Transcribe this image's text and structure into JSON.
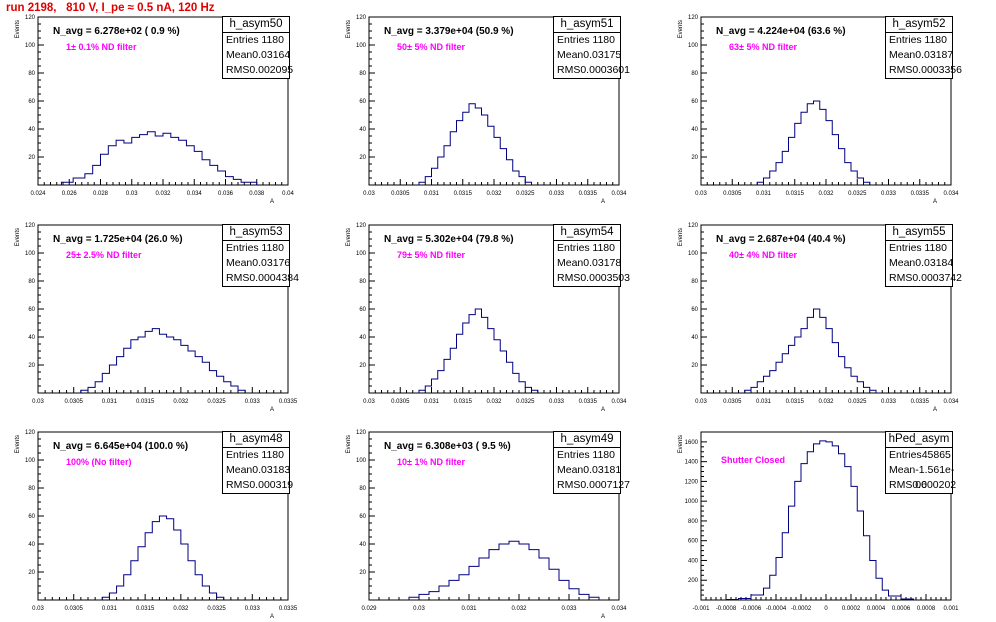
{
  "title": "run 2198,   810 V, I_pe ≈ 0.5 nA, 120 Hz",
  "stats_labels": {
    "entries": "Entries",
    "mean": "Mean",
    "rms": "RMS"
  },
  "colors": {
    "histogram": "#000080",
    "title": "#e00000",
    "annotation": "#ff00ff"
  },
  "chart_data": [
    {
      "type": "histogram",
      "name": "h_asym50",
      "n_avg": "N_avg = 6.278e+02 ( 0.9 %)",
      "filter": "1± 0.1% ND filter",
      "entries": "1180",
      "mean": "0.03164",
      "rms": "0.002095",
      "ylabel": "Events",
      "xlabel": "A",
      "xlim": [
        0.024,
        0.04
      ],
      "ylim": [
        0,
        120
      ],
      "xticks": [
        "0.024",
        "0.026",
        "0.028",
        "0.03",
        "0.032",
        "0.034",
        "0.036",
        "0.038",
        "0.04"
      ],
      "yticks": [
        "20",
        "40",
        "60",
        "80",
        "100",
        "120"
      ],
      "bin_edges": [
        0.0255,
        0.02625,
        0.027,
        0.0275,
        0.028,
        0.0285,
        0.029,
        0.0295,
        0.03,
        0.0305,
        0.031,
        0.0315,
        0.032,
        0.0325,
        0.033,
        0.0335,
        0.034,
        0.0345,
        0.035,
        0.0355,
        0.036,
        0.0365,
        0.037,
        0.038
      ],
      "counts": [
        2,
        5,
        8,
        14,
        22,
        28,
        32,
        30,
        34,
        36,
        38,
        35,
        37,
        34,
        32,
        28,
        24,
        18,
        14,
        10,
        6,
        4,
        2
      ]
    },
    {
      "type": "histogram",
      "name": "h_asym51",
      "n_avg": "N_avg = 3.379e+04 (50.9 %)",
      "filter": "50± 5% ND filter",
      "entries": "1180",
      "mean": "0.03175",
      "rms": "0.0003601",
      "ylabel": "Events",
      "xlabel": "A",
      "xlim": [
        0.03,
        0.034
      ],
      "ylim": [
        0,
        120
      ],
      "xticks": [
        "0.03",
        "0.0305",
        "0.031",
        "0.0315",
        "0.032",
        "0.0325",
        "0.033",
        "0.0335",
        "0.034"
      ],
      "yticks": [
        "20",
        "40",
        "60",
        "80",
        "100",
        "120"
      ],
      "bin_edges": [
        0.0308,
        0.0309,
        0.031,
        0.0311,
        0.0312,
        0.0313,
        0.0314,
        0.0315,
        0.0316,
        0.0317,
        0.0318,
        0.0319,
        0.032,
        0.0321,
        0.0322,
        0.0323,
        0.0324,
        0.0325,
        0.0326
      ],
      "counts": [
        2,
        6,
        12,
        20,
        28,
        38,
        46,
        52,
        58,
        55,
        50,
        42,
        34,
        26,
        18,
        10,
        6,
        2
      ]
    },
    {
      "type": "histogram",
      "name": "h_asym52",
      "n_avg": "N_avg = 4.224e+04 (63.6 %)",
      "filter": "63± 5% ND filter",
      "entries": "1180",
      "mean": "0.03187",
      "rms": "0.0003356",
      "ylabel": "Events",
      "xlabel": "A",
      "xlim": [
        0.03,
        0.034
      ],
      "ylim": [
        0,
        120
      ],
      "xticks": [
        "0.03",
        "0.0305",
        "0.031",
        "0.0315",
        "0.032",
        "0.0325",
        "0.033",
        "0.0335",
        "0.034"
      ],
      "yticks": [
        "20",
        "40",
        "60",
        "80",
        "100",
        "120"
      ],
      "bin_edges": [
        0.0309,
        0.031,
        0.0311,
        0.0312,
        0.0313,
        0.0314,
        0.0315,
        0.0316,
        0.0317,
        0.0318,
        0.0319,
        0.032,
        0.0321,
        0.0322,
        0.0323,
        0.0324,
        0.0325,
        0.0326,
        0.0327
      ],
      "counts": [
        2,
        5,
        10,
        16,
        24,
        34,
        44,
        52,
        58,
        60,
        54,
        46,
        36,
        26,
        16,
        10,
        5,
        2
      ]
    },
    {
      "type": "histogram",
      "name": "h_asym53",
      "n_avg": "N_avg = 1.725e+04 (26.0 %)",
      "filter": "25± 2.5% ND filter",
      "entries": "1180",
      "mean": "0.03176",
      "rms": "0.0004384",
      "ylabel": "Events",
      "xlabel": "A",
      "xlim": [
        0.03,
        0.0335
      ],
      "ylim": [
        0,
        120
      ],
      "xticks": [
        "0.03",
        "0.0305",
        "0.031",
        "0.0315",
        "0.032",
        "0.0325",
        "0.033",
        "0.0335"
      ],
      "yticks": [
        "20",
        "40",
        "60",
        "80",
        "100",
        "120"
      ],
      "bin_edges": [
        0.0306,
        0.0307,
        0.0308,
        0.0309,
        0.031,
        0.0311,
        0.0312,
        0.0313,
        0.0314,
        0.0315,
        0.0316,
        0.0317,
        0.0318,
        0.0319,
        0.032,
        0.0321,
        0.0322,
        0.0323,
        0.0324,
        0.0325,
        0.0326,
        0.0327,
        0.0328,
        0.0329
      ],
      "counts": [
        2,
        4,
        8,
        14,
        20,
        26,
        32,
        38,
        40,
        44,
        46,
        42,
        40,
        38,
        34,
        30,
        26,
        22,
        16,
        12,
        8,
        5,
        2
      ]
    },
    {
      "type": "histogram",
      "name": "h_asym54",
      "n_avg": "N_avg = 5.302e+04 (79.8 %)",
      "filter": "79± 5% ND filter",
      "entries": "1180",
      "mean": "0.03178",
      "rms": "0.0003503",
      "ylabel": "Events",
      "xlabel": "A",
      "xlim": [
        0.03,
        0.034
      ],
      "ylim": [
        0,
        120
      ],
      "xticks": [
        "0.03",
        "0.0305",
        "0.031",
        "0.0315",
        "0.032",
        "0.0325",
        "0.033",
        "0.0335",
        "0.034"
      ],
      "yticks": [
        "20",
        "40",
        "60",
        "80",
        "100",
        "120"
      ],
      "bin_edges": [
        0.0308,
        0.0309,
        0.031,
        0.0311,
        0.0312,
        0.0313,
        0.0314,
        0.0315,
        0.0316,
        0.0317,
        0.0318,
        0.0319,
        0.032,
        0.0321,
        0.0322,
        0.0323,
        0.0324,
        0.0325,
        0.0326,
        0.0327
      ],
      "counts": [
        2,
        5,
        10,
        16,
        24,
        32,
        42,
        50,
        56,
        60,
        54,
        46,
        38,
        30,
        22,
        14,
        8,
        4,
        2
      ]
    },
    {
      "type": "histogram",
      "name": "h_asym55",
      "n_avg": "N_avg = 2.687e+04 (40.4 %)",
      "filter": "40± 4% ND filter",
      "entries": "1180",
      "mean": "0.03184",
      "rms": "0.0003742",
      "ylabel": "Events",
      "xlabel": "A",
      "xlim": [
        0.03,
        0.034
      ],
      "ylim": [
        0,
        120
      ],
      "xticks": [
        "0.03",
        "0.0305",
        "0.031",
        "0.0315",
        "0.032",
        "0.0325",
        "0.033",
        "0.0335",
        "0.034"
      ],
      "yticks": [
        "20",
        "40",
        "60",
        "80",
        "100",
        "120"
      ],
      "bin_edges": [
        0.0307,
        0.0308,
        0.0309,
        0.031,
        0.0311,
        0.0312,
        0.0313,
        0.0314,
        0.0315,
        0.0316,
        0.0317,
        0.0318,
        0.0319,
        0.032,
        0.0321,
        0.0322,
        0.0323,
        0.0324,
        0.0325,
        0.0326,
        0.0327,
        0.0328
      ],
      "counts": [
        2,
        4,
        8,
        12,
        16,
        22,
        28,
        34,
        40,
        46,
        54,
        60,
        54,
        46,
        36,
        26,
        18,
        12,
        8,
        4,
        2
      ]
    },
    {
      "type": "histogram",
      "name": "h_asym48",
      "n_avg": "N_avg = 6.645e+04 (100.0 %)",
      "filter": "100% (No filter)",
      "entries": "1180",
      "mean": "0.03183",
      "rms": "0.000319",
      "ylabel": "Events",
      "xlabel": "A",
      "xlim": [
        0.03,
        0.0335
      ],
      "ylim": [
        0,
        120
      ],
      "xticks": [
        "0.03",
        "0.0305",
        "0.031",
        "0.0315",
        "0.032",
        "0.0325",
        "0.033",
        "0.0335"
      ],
      "yticks": [
        "20",
        "40",
        "60",
        "80",
        "100",
        "120"
      ],
      "bin_edges": [
        0.0309,
        0.031,
        0.0311,
        0.0312,
        0.0313,
        0.0314,
        0.0315,
        0.0316,
        0.0317,
        0.0318,
        0.0319,
        0.032,
        0.0321,
        0.0322,
        0.0323,
        0.0324,
        0.0325,
        0.0326
      ],
      "counts": [
        2,
        5,
        10,
        18,
        28,
        38,
        48,
        56,
        60,
        58,
        50,
        40,
        28,
        18,
        10,
        5,
        2
      ]
    },
    {
      "type": "histogram",
      "name": "h_asym49",
      "n_avg": "N_avg = 6.308e+03 ( 9.5 %)",
      "filter": "10± 1% ND filter",
      "entries": "1180",
      "mean": "0.03181",
      "rms": "0.0007127",
      "ylabel": "Events",
      "xlabel": "A",
      "xlim": [
        0.029,
        0.034
      ],
      "ylim": [
        0,
        120
      ],
      "xticks": [
        "0.029",
        "0.03",
        "0.031",
        "0.032",
        "0.033",
        "0.034"
      ],
      "yticks": [
        "20",
        "40",
        "60",
        "80",
        "100",
        "120"
      ],
      "bin_edges": [
        0.0298,
        0.03,
        0.0302,
        0.0304,
        0.0306,
        0.0308,
        0.031,
        0.0312,
        0.0314,
        0.0316,
        0.0318,
        0.032,
        0.0322,
        0.0324,
        0.0326,
        0.0328,
        0.033,
        0.0332,
        0.0334,
        0.0336
      ],
      "counts": [
        2,
        4,
        6,
        10,
        14,
        18,
        24,
        30,
        36,
        40,
        42,
        40,
        36,
        30,
        22,
        14,
        8,
        4,
        2
      ]
    },
    {
      "type": "histogram",
      "name": "hPed_asym",
      "n_avg": "",
      "filter": "Shutter Closed",
      "entries": "45865",
      "mean": "-1.561e-06",
      "rms": "0.000202",
      "ylabel": "Events",
      "xlabel": "",
      "xlim": [
        -0.001,
        0.001
      ],
      "ylim": [
        0,
        1700
      ],
      "xticks": [
        "-0.001",
        "-0.0008",
        "-0.0006",
        "-0.0004",
        "-0.0002",
        "0",
        "0.0002",
        "0.0004",
        "0.0006",
        "0.0008",
        "0.001"
      ],
      "yticks": [
        "200",
        "400",
        "600",
        "800",
        "1000",
        "1200",
        "1400",
        "1600"
      ],
      "bin_edges": [
        -0.0008,
        -0.0007,
        -0.0006,
        -0.0005,
        -0.00045,
        -0.0004,
        -0.00035,
        -0.0003,
        -0.00025,
        -0.0002,
        -0.00015,
        -0.0001,
        -5e-05,
        0.0,
        5e-05,
        0.0001,
        0.00015,
        0.0002,
        0.00025,
        0.0003,
        0.00035,
        0.0004,
        0.00045,
        0.0005,
        0.0006,
        0.0007
      ],
      "counts": [
        5,
        15,
        50,
        120,
        250,
        430,
        680,
        950,
        1200,
        1380,
        1500,
        1580,
        1610,
        1600,
        1560,
        1480,
        1350,
        1150,
        900,
        650,
        400,
        220,
        100,
        40,
        10
      ]
    }
  ]
}
